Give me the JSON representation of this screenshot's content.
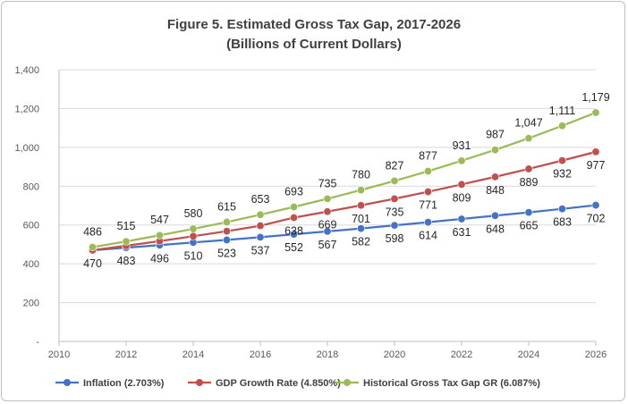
{
  "chart_data": {
    "type": "line",
    "title": "Figure 5. Estimated Gross Tax Gap, 2017-2026",
    "subtitle": "(Billions of Current Dollars)",
    "xlabel": "",
    "ylabel": "",
    "xlim": [
      2010,
      2026
    ],
    "ylim": [
      0,
      1400
    ],
    "x_ticks": [
      "2010",
      "2012",
      "2014",
      "2016",
      "2018",
      "2020",
      "2022",
      "2024",
      "2026"
    ],
    "y_ticks": [
      "-",
      "200",
      "400",
      "600",
      "800",
      "1,000",
      "1,200",
      "1,400"
    ],
    "grid": "horizontal",
    "legend_position": "bottom",
    "x": [
      2011,
      2012,
      2013,
      2014,
      2015,
      2016,
      2017,
      2018,
      2019,
      2020,
      2021,
      2022,
      2023,
      2024,
      2025,
      2026
    ],
    "series": [
      {
        "name": "Inflation (2.703%)",
        "color": "#4472c4",
        "label_position": "below",
        "values": [
          470,
          483,
          496,
          510,
          523,
          537,
          552,
          567,
          582,
          598,
          614,
          631,
          648,
          665,
          683,
          702
        ],
        "labels": [
          "470",
          "483",
          "496",
          "510",
          "523",
          "537",
          "552",
          "567",
          "582",
          "598",
          "614",
          "631",
          "648",
          "665",
          "683",
          "702"
        ]
      },
      {
        "name": "GDP Growth Rate (4.850%)",
        "color": "#c0504d",
        "label_position": "below",
        "values": [
          null,
          null,
          null,
          null,
          null,
          null,
          638,
          669,
          701,
          735,
          771,
          809,
          848,
          889,
          932,
          977
        ],
        "all_values": [
          470,
          493,
          517,
          542,
          568,
          596,
          638,
          669,
          701,
          735,
          771,
          809,
          848,
          889,
          932,
          977
        ],
        "labels": [
          "",
          "",
          "",
          "",
          "",
          "",
          "638",
          "669",
          "701",
          "735",
          "771",
          "809",
          "848",
          "889",
          "932",
          "977"
        ]
      },
      {
        "name": "Historical Gross Tax Gap GR (6.087%)",
        "color": "#9bbb59",
        "label_position": "above",
        "values": [
          486,
          515,
          547,
          580,
          615,
          653,
          693,
          735,
          780,
          827,
          877,
          931,
          987,
          1047,
          1111,
          1179
        ],
        "labels": [
          "486",
          "515",
          "547",
          "580",
          "615",
          "653",
          "693",
          "735",
          "780",
          "827",
          "877",
          "931",
          "987",
          "1,047",
          "1,111",
          "1,179"
        ]
      }
    ]
  }
}
